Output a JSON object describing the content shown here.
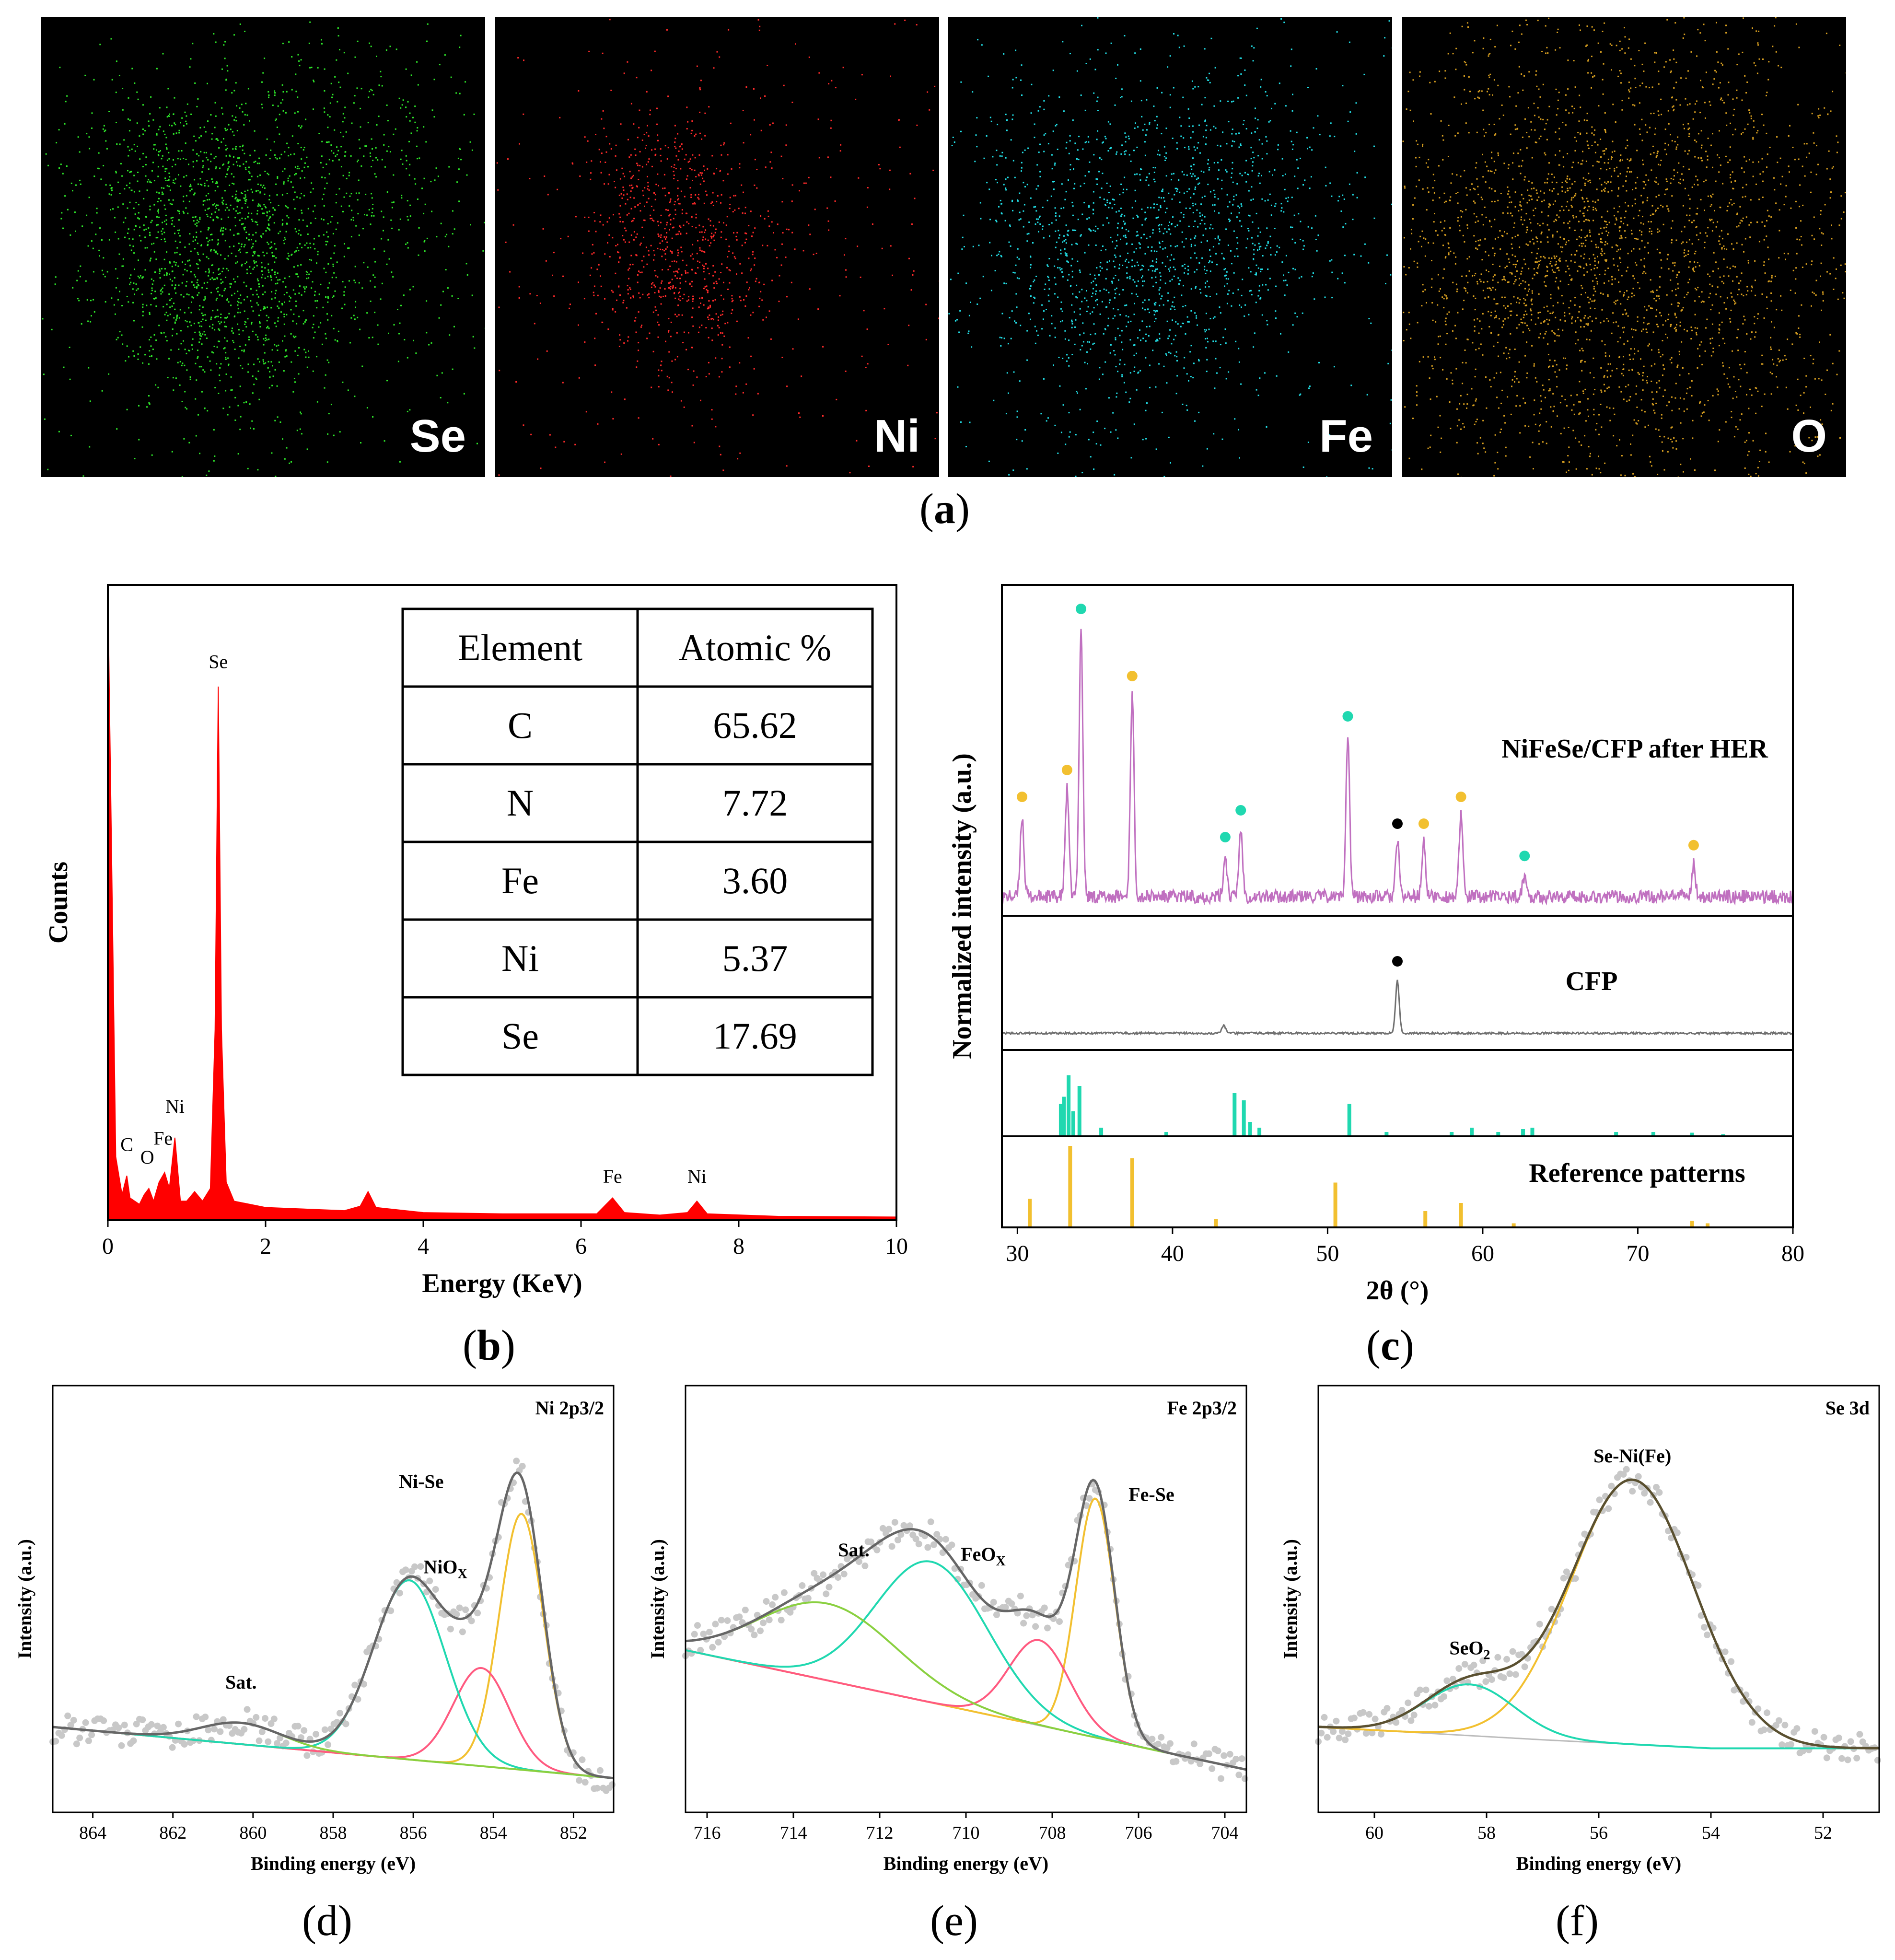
{
  "panel_a": {
    "letter": "a",
    "maps": [
      {
        "element": "Se",
        "color": "#2ee82a"
      },
      {
        "element": "Ni",
        "color": "#ff2a2a"
      },
      {
        "element": "Fe",
        "color": "#22e0e8"
      },
      {
        "element": "O",
        "color": "#d9a020"
      }
    ]
  },
  "chart_data": [
    {
      "panel": "b",
      "type": "area",
      "title": "",
      "xlabel": "Energy (KeV)",
      "ylabel": "Counts",
      "xlim": [
        0,
        10
      ],
      "xticks": [
        "0",
        "2",
        "4",
        "6",
        "8",
        "10"
      ],
      "color": "#ff0000",
      "spectrum": [
        [
          0,
          1.0
        ],
        [
          0.05,
          0.55
        ],
        [
          0.1,
          0.1
        ],
        [
          0.18,
          0.04
        ],
        [
          0.24,
          0.07
        ],
        [
          0.28,
          0.035
        ],
        [
          0.4,
          0.025
        ],
        [
          0.46,
          0.04
        ],
        [
          0.52,
          0.05
        ],
        [
          0.58,
          0.03
        ],
        [
          0.65,
          0.06
        ],
        [
          0.72,
          0.075
        ],
        [
          0.78,
          0.05
        ],
        [
          0.85,
          0.13
        ],
        [
          0.92,
          0.03
        ],
        [
          1.0,
          0.03
        ],
        [
          1.1,
          0.045
        ],
        [
          1.2,
          0.03
        ],
        [
          1.3,
          0.05
        ],
        [
          1.36,
          0.3
        ],
        [
          1.4,
          0.84
        ],
        [
          1.44,
          0.3
        ],
        [
          1.5,
          0.06
        ],
        [
          1.6,
          0.03
        ],
        [
          2.0,
          0.02
        ],
        [
          3.0,
          0.015
        ],
        [
          3.2,
          0.022
        ],
        [
          3.3,
          0.045
        ],
        [
          3.4,
          0.02
        ],
        [
          4.0,
          0.012
        ],
        [
          5.0,
          0.01
        ],
        [
          6.2,
          0.01
        ],
        [
          6.4,
          0.035
        ],
        [
          6.55,
          0.012
        ],
        [
          7.0,
          0.008
        ],
        [
          7.35,
          0.012
        ],
        [
          7.47,
          0.03
        ],
        [
          7.6,
          0.01
        ],
        [
          8.5,
          0.006
        ],
        [
          10.0,
          0.005
        ]
      ],
      "peak_labels": [
        {
          "text": "Se",
          "x": 1.4,
          "y": 0.86
        },
        {
          "text": "C",
          "x": 0.24,
          "y": 0.1
        },
        {
          "text": "O",
          "x": 0.5,
          "y": 0.08
        },
        {
          "text": "Fe",
          "x": 0.7,
          "y": 0.11
        },
        {
          "text": "Ni",
          "x": 0.85,
          "y": 0.16
        },
        {
          "text": "Fe",
          "x": 6.4,
          "y": 0.05
        },
        {
          "text": "Ni",
          "x": 7.47,
          "y": 0.05
        }
      ],
      "table": {
        "headers": [
          "Element",
          "Atomic %"
        ],
        "rows": [
          [
            "C",
            "65.62"
          ],
          [
            "N",
            "7.72"
          ],
          [
            "Fe",
            "3.60"
          ],
          [
            "Ni",
            "5.37"
          ],
          [
            "Se",
            "17.69"
          ]
        ]
      }
    },
    {
      "panel": "c",
      "type": "line",
      "xlabel": "2θ (°)",
      "ylabel": "Normalized intensity (a.u.)",
      "xlim": [
        29,
        80
      ],
      "xticks": [
        "30",
        "40",
        "50",
        "60",
        "70",
        "80"
      ],
      "series": [
        {
          "name": "NiFeSe/CFP after HER",
          "color": "#c070c0",
          "peaks": [
            [
              30.3,
              0.3
            ],
            [
              33.2,
              0.4
            ],
            [
              34.1,
              1.0
            ],
            [
              37.4,
              0.75
            ],
            [
              43.4,
              0.15
            ],
            [
              44.4,
              0.25
            ],
            [
              51.3,
              0.6
            ],
            [
              54.5,
              0.2
            ],
            [
              56.2,
              0.2
            ],
            [
              58.6,
              0.3
            ],
            [
              62.7,
              0.08
            ],
            [
              73.6,
              0.12
            ]
          ],
          "markers": [
            {
              "x": 30.3,
              "color": "#f2c030"
            },
            {
              "x": 33.2,
              "color": "#f2c030"
            },
            {
              "x": 34.1,
              "color": "#20d8b0"
            },
            {
              "x": 37.4,
              "color": "#f2c030"
            },
            {
              "x": 43.4,
              "color": "#20d8b0"
            },
            {
              "x": 44.4,
              "color": "#20d8b0"
            },
            {
              "x": 51.3,
              "color": "#20d8b0"
            },
            {
              "x": 54.5,
              "color": "#000000"
            },
            {
              "x": 56.2,
              "color": "#f2c030"
            },
            {
              "x": 58.6,
              "color": "#f2c030"
            },
            {
              "x": 62.7,
              "color": "#20d8b0"
            },
            {
              "x": 73.6,
              "color": "#f2c030"
            }
          ]
        },
        {
          "name": "CFP",
          "color": "#707070",
          "peaks": [
            [
              43.3,
              0.08
            ],
            [
              54.5,
              0.55
            ]
          ],
          "markers": [
            {
              "x": 54.5,
              "color": "#000000"
            }
          ]
        }
      ],
      "reference_label": "Reference patterns",
      "reference_1": {
        "color": "#20d8b0",
        "sticks": [
          [
            32.8,
            0.45
          ],
          [
            33.0,
            0.55
          ],
          [
            33.3,
            0.85
          ],
          [
            33.6,
            0.35
          ],
          [
            34.0,
            0.7
          ],
          [
            35.4,
            0.12
          ],
          [
            39.6,
            0.06
          ],
          [
            44.0,
            0.6
          ],
          [
            44.6,
            0.5
          ],
          [
            45.0,
            0.2
          ],
          [
            45.6,
            0.12
          ],
          [
            51.4,
            0.45
          ],
          [
            53.8,
            0.06
          ],
          [
            58.0,
            0.06
          ],
          [
            59.3,
            0.12
          ],
          [
            61.0,
            0.06
          ],
          [
            62.6,
            0.1
          ],
          [
            63.2,
            0.12
          ],
          [
            68.6,
            0.06
          ],
          [
            71.0,
            0.06
          ],
          [
            73.5,
            0.05
          ],
          [
            75.5,
            0.03
          ]
        ]
      },
      "reference_2": {
        "color": "#f2c030",
        "sticks": [
          [
            30.8,
            0.35
          ],
          [
            33.4,
            1.0
          ],
          [
            37.4,
            0.85
          ],
          [
            42.8,
            0.1
          ],
          [
            50.5,
            0.55
          ],
          [
            56.3,
            0.2
          ],
          [
            58.6,
            0.3
          ],
          [
            62.0,
            0.05
          ],
          [
            73.5,
            0.08
          ],
          [
            74.5,
            0.05
          ]
        ]
      }
    },
    {
      "panel": "d",
      "type": "line",
      "title": "Ni 2p3/2",
      "xlabel": "Binding energy (eV)",
      "ylabel": "Intensity (a.u.)",
      "xlim": [
        865,
        851
      ],
      "ylim": [
        0,
        1
      ],
      "xticks": [
        "864",
        "862",
        "860",
        "858",
        "856",
        "854",
        "852"
      ],
      "baseline": [
        [
          865,
          0.2
        ],
        [
          851,
          0.08
        ]
      ],
      "components": [
        {
          "name": "Ni-Se",
          "color": "#f2c030",
          "center": 853.3,
          "amp": 0.6,
          "width": 0.55
        },
        {
          "name": "NiOx-1",
          "color": "#ff5a80",
          "center": 854.3,
          "amp": 0.23,
          "width": 0.7
        },
        {
          "name": "NiOx-2",
          "color": "#20d8b0",
          "center": 856.1,
          "amp": 0.42,
          "width": 0.9
        },
        {
          "name": "Sat.",
          "color": "#8ad040",
          "center": 860.3,
          "amp": 0.05,
          "width": 1.0
        }
      ],
      "envelope_color": "#666666",
      "labels": [
        {
          "text": "Ni-Se",
          "x": 855.8,
          "y": 0.76
        },
        {
          "text": "Sat.",
          "x": 860.3,
          "y": 0.29
        },
        {
          "text": "NiO",
          "sub": "X",
          "x": 855.2,
          "y": 0.56
        }
      ]
    },
    {
      "panel": "e",
      "type": "line",
      "title": "Fe 2p3/2",
      "xlabel": "Binding energy (eV)",
      "ylabel": "Intensity (a.u.)",
      "xlim": [
        716.5,
        703.5
      ],
      "ylim": [
        0,
        1
      ],
      "xticks": [
        "716",
        "714",
        "712",
        "710",
        "708",
        "706",
        "704"
      ],
      "baseline": [
        [
          716.5,
          0.38
        ],
        [
          703.5,
          0.1
        ]
      ],
      "components": [
        {
          "name": "Fe-Se",
          "color": "#f2c030",
          "center": 707.0,
          "amp": 0.56,
          "width": 0.45
        },
        {
          "name": "FeOx-1",
          "color": "#ff5a80",
          "center": 708.3,
          "amp": 0.2,
          "width": 0.7
        },
        {
          "name": "FeOx-2",
          "color": "#20d8b0",
          "center": 710.8,
          "amp": 0.33,
          "width": 1.3
        },
        {
          "name": "Sat.",
          "color": "#8ad040",
          "center": 713.2,
          "amp": 0.18,
          "width": 1.6
        }
      ],
      "envelope_color": "#666666",
      "labels": [
        {
          "text": "Sat.",
          "x": 712.6,
          "y": 0.6
        },
        {
          "text": "FeO",
          "sub": "X",
          "x": 709.6,
          "y": 0.59
        },
        {
          "text": "Fe-Se",
          "x": 705.7,
          "y": 0.73
        }
      ]
    },
    {
      "panel": "f",
      "type": "line",
      "title": "Se 3d",
      "xlabel": "Binding energy (eV)",
      "ylabel": "Intensity (a.u.)",
      "xlim": [
        61,
        51
      ],
      "ylim": [
        0,
        1
      ],
      "xticks": [
        "60",
        "58",
        "56",
        "54",
        "52"
      ],
      "baseline": [
        [
          61,
          0.2
        ],
        [
          57,
          0.17
        ],
        [
          54,
          0.15
        ],
        [
          51,
          0.15
        ]
      ],
      "components": [
        {
          "name": "Se-Ni(Fe)",
          "color": "#f2c030",
          "center": 55.4,
          "amp": 0.62,
          "width": 1.1
        },
        {
          "name": "SeO2",
          "color": "#20d8b0",
          "center": 58.3,
          "amp": 0.12,
          "width": 0.8
        }
      ],
      "envelope_color": "#5a5030",
      "labels": [
        {
          "text": "Se-Ni(Fe)",
          "x": 55.4,
          "y": 0.82
        },
        {
          "text": "SeO",
          "sub": "2",
          "x": 58.3,
          "y": 0.37
        }
      ]
    }
  ],
  "panel_letters": {
    "b": "b",
    "c": "c",
    "d": "d",
    "e": "e",
    "f": "f"
  }
}
